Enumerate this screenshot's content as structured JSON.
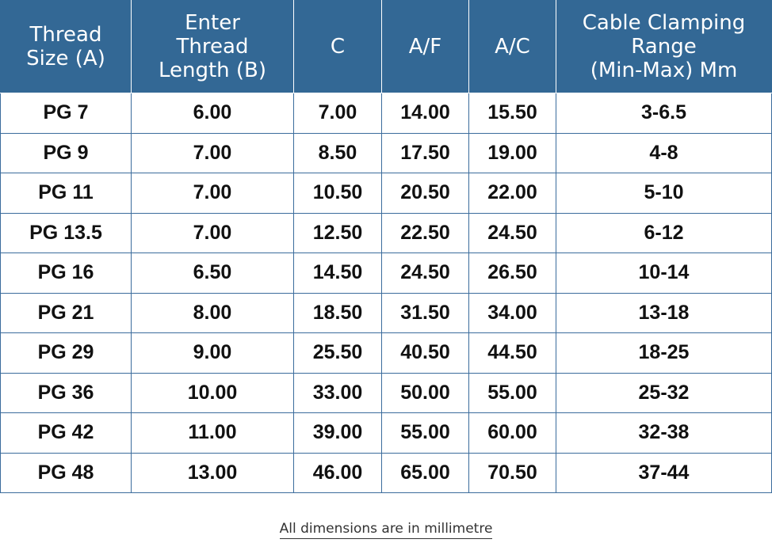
{
  "table": {
    "headers": [
      "Thread\nSize (A)",
      "Enter\nThread\nLength (B)",
      "C",
      "A/F",
      "A/C",
      "Cable Clamping\nRange\n(Min-Max) Mm"
    ],
    "rows": [
      [
        "PG 7",
        "6.00",
        "7.00",
        "14.00",
        "15.50",
        "3-6.5"
      ],
      [
        "PG 9",
        "7.00",
        "8.50",
        "17.50",
        "19.00",
        "4-8"
      ],
      [
        "PG 11",
        "7.00",
        "10.50",
        "20.50",
        "22.00",
        "5-10"
      ],
      [
        "PG 13.5",
        "7.00",
        "12.50",
        "22.50",
        "24.50",
        "6-12"
      ],
      [
        "PG 16",
        "6.50",
        "14.50",
        "24.50",
        "26.50",
        "10-14"
      ],
      [
        "PG 21",
        "8.00",
        "18.50",
        "31.50",
        "34.00",
        "13-18"
      ],
      [
        "PG 29",
        "9.00",
        "25.50",
        "40.50",
        "44.50",
        "18-25"
      ],
      [
        "PG 36",
        "10.00",
        "33.00",
        "50.00",
        "55.00",
        "25-32"
      ],
      [
        "PG 42",
        "11.00",
        "39.00",
        "55.00",
        "60.00",
        "32-38"
      ],
      [
        "PG 48",
        "13.00",
        "46.00",
        "65.00",
        "70.50",
        "37-44"
      ]
    ]
  },
  "footnote": "All dimensions are in millimetre",
  "colors": {
    "header_bg": "#336895",
    "border": "#3b6c9c"
  }
}
